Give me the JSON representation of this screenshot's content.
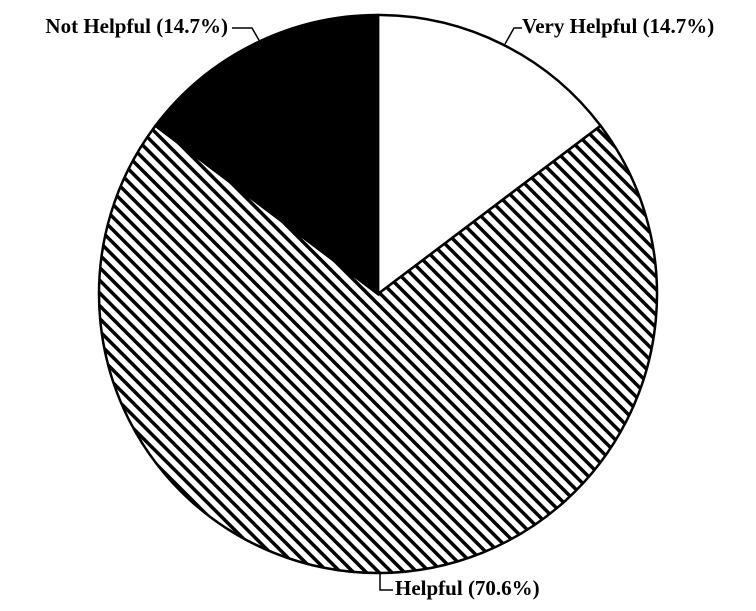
{
  "chart_data": {
    "type": "pie",
    "categories": [
      "Very Helpful",
      "Helpful",
      "Not Helpful"
    ],
    "values": [
      14.7,
      70.6,
      14.7
    ],
    "value_labels": [
      "(14.7%)",
      "(70.6%)",
      "(14.7%)"
    ],
    "colors": [
      "#ffffff",
      "#ffffff",
      "#000000"
    ],
    "hatch": [
      false,
      true,
      false
    ]
  }
}
